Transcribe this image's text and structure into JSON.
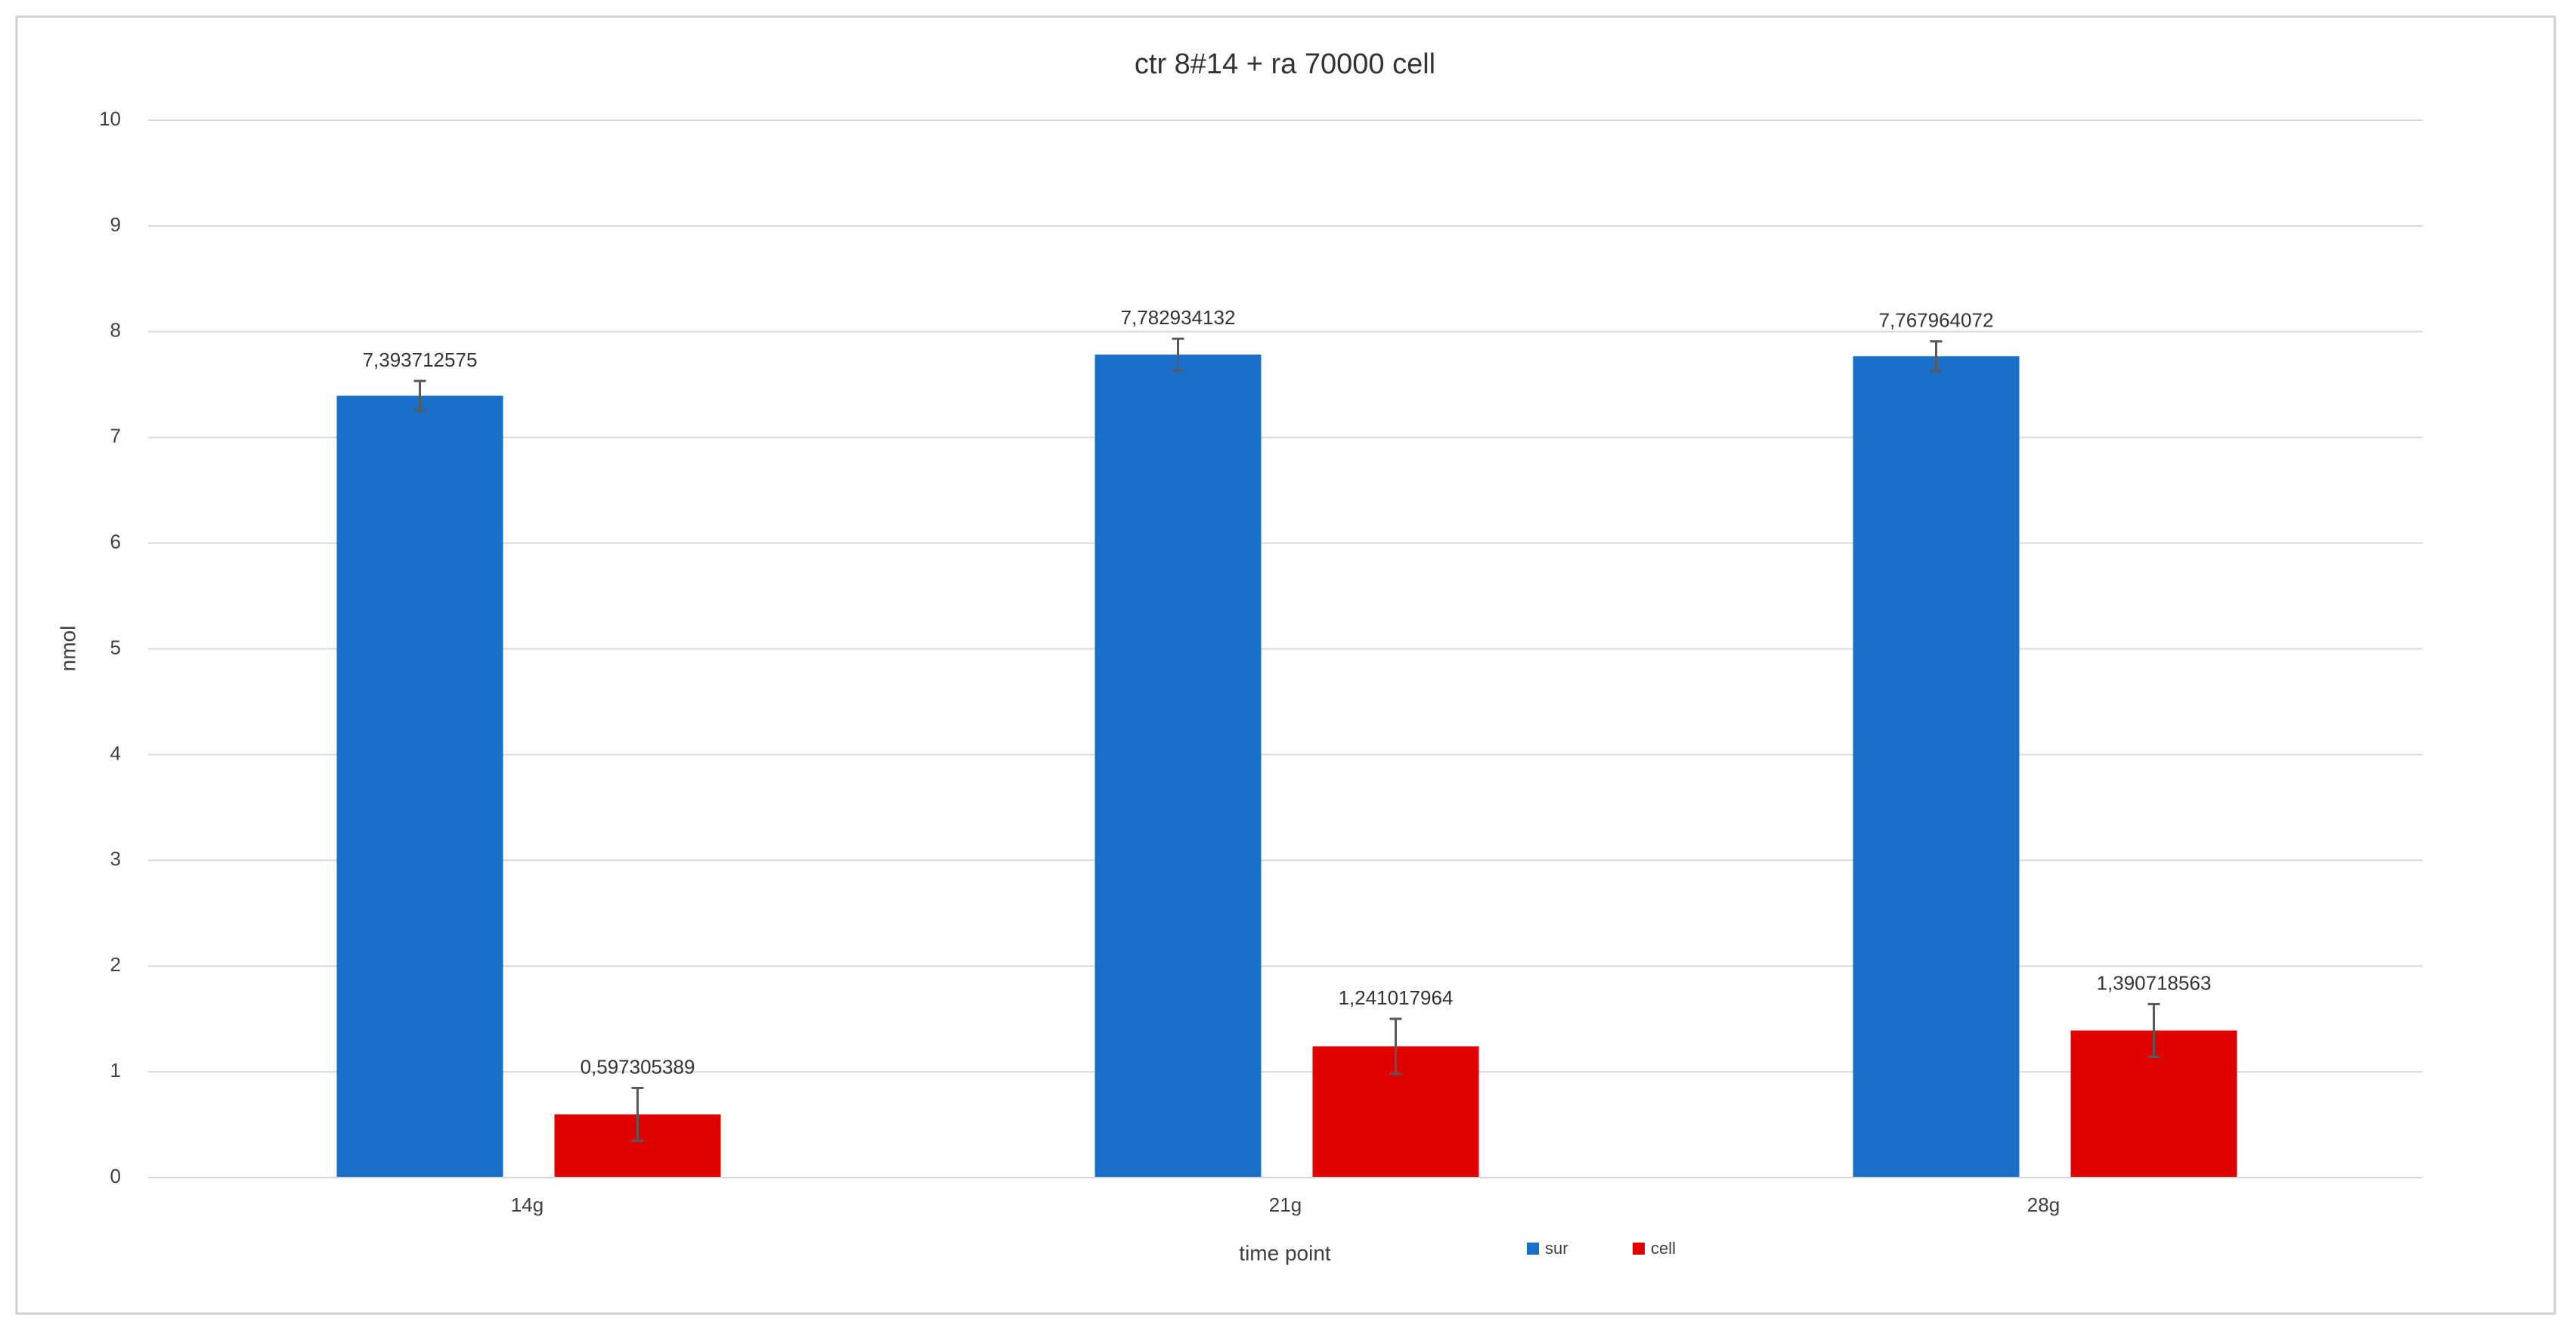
{
  "chart_data": {
    "type": "bar",
    "title": "ctr 8#14 + ra 70000 cell",
    "x_label": "time point",
    "y_label": "nmol",
    "categories": [
      "14g",
      "21g",
      "28g"
    ],
    "series": [
      {
        "name": "sur",
        "color": "#1a6fc9",
        "values": [
          7.393712575,
          7.782934132,
          7.767964072
        ],
        "value_labels": [
          "7,393712575",
          "7,782934132",
          "7,767964072"
        ],
        "errors": [
          0.14,
          0.15,
          0.14
        ]
      },
      {
        "name": "cell",
        "color": "#e00000",
        "values": [
          0.597305389,
          1.241017964,
          1.390718563
        ],
        "value_labels": [
          "0,597305389",
          "1,241017964",
          "1,390718563"
        ],
        "errors": [
          0.25,
          0.26,
          0.25
        ]
      }
    ],
    "ylim": [
      0,
      10
    ],
    "yticks": [
      0,
      1,
      2,
      3,
      4,
      5,
      6,
      7,
      8,
      9,
      10
    ],
    "grid": true,
    "legend": "bottom"
  }
}
